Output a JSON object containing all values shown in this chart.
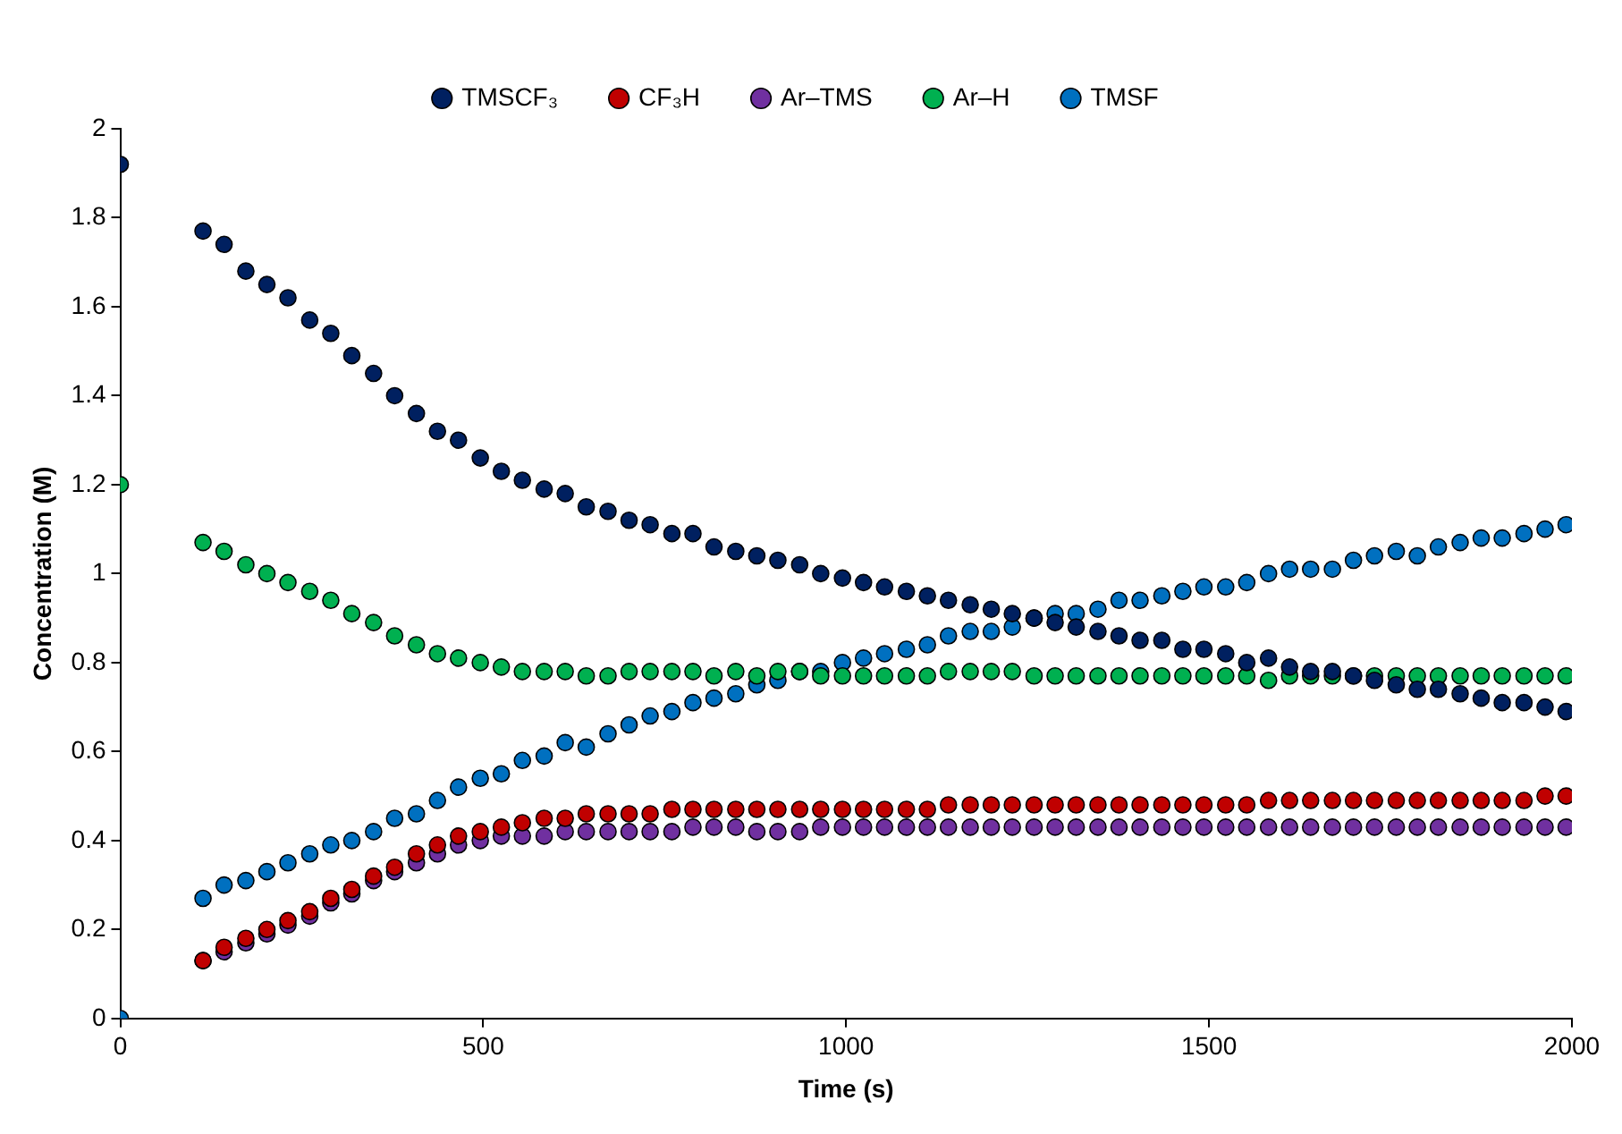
{
  "chart_data": {
    "type": "scatter",
    "xlabel": "Time (s)",
    "ylabel": "Concentration (M)",
    "x": [
      0,
      114,
      143,
      173,
      202,
      231,
      261,
      290,
      319,
      349,
      378,
      408,
      437,
      466,
      496,
      525,
      554,
      584,
      613,
      642,
      672,
      701,
      730,
      760,
      789,
      818,
      848,
      877,
      906,
      936,
      965,
      995,
      1024,
      1053,
      1083,
      1112,
      1141,
      1171,
      1200,
      1229,
      1259,
      1288,
      1317,
      1347,
      1376,
      1405,
      1435,
      1464,
      1493,
      1523,
      1552,
      1582,
      1611,
      1640,
      1670,
      1699,
      1728,
      1758,
      1787,
      1816,
      1846,
      1875,
      1904,
      1934,
      1963,
      1992
    ],
    "series": [
      {
        "name": "TMSCF₃",
        "color": "#002060",
        "values": [
          1.92,
          1.77,
          1.74,
          1.68,
          1.65,
          1.62,
          1.57,
          1.54,
          1.49,
          1.45,
          1.4,
          1.36,
          1.32,
          1.3,
          1.26,
          1.23,
          1.21,
          1.19,
          1.18,
          1.15,
          1.14,
          1.12,
          1.11,
          1.09,
          1.09,
          1.06,
          1.05,
          1.04,
          1.03,
          1.02,
          1.0,
          0.99,
          0.98,
          0.97,
          0.96,
          0.95,
          0.94,
          0.93,
          0.92,
          0.91,
          0.9,
          0.89,
          0.88,
          0.87,
          0.86,
          0.85,
          0.85,
          0.83,
          0.83,
          0.82,
          0.8,
          0.81,
          0.79,
          0.78,
          0.78,
          0.77,
          0.76,
          0.75,
          0.74,
          0.74,
          0.73,
          0.72,
          0.71,
          0.71,
          0.7,
          0.69
        ]
      },
      {
        "name": "CF₃H",
        "color": "#c00000",
        "values": [
          null,
          0.13,
          0.16,
          0.18,
          0.2,
          0.22,
          0.24,
          0.27,
          0.29,
          0.32,
          0.34,
          0.37,
          0.39,
          0.41,
          0.42,
          0.43,
          0.44,
          0.45,
          0.45,
          0.46,
          0.46,
          0.46,
          0.46,
          0.47,
          0.47,
          0.47,
          0.47,
          0.47,
          0.47,
          0.47,
          0.47,
          0.47,
          0.47,
          0.47,
          0.47,
          0.47,
          0.48,
          0.48,
          0.48,
          0.48,
          0.48,
          0.48,
          0.48,
          0.48,
          0.48,
          0.48,
          0.48,
          0.48,
          0.48,
          0.48,
          0.48,
          0.49,
          0.49,
          0.49,
          0.49,
          0.49,
          0.49,
          0.49,
          0.49,
          0.49,
          0.49,
          0.49,
          0.49,
          0.49,
          0.5,
          0.5
        ]
      },
      {
        "name": "Ar–TMS",
        "color": "#7030a0",
        "values": [
          null,
          0.13,
          0.15,
          0.17,
          0.19,
          0.21,
          0.23,
          0.26,
          0.28,
          0.31,
          0.33,
          0.35,
          0.37,
          0.39,
          0.4,
          0.41,
          0.41,
          0.41,
          0.42,
          0.42,
          0.42,
          0.42,
          0.42,
          0.42,
          0.43,
          0.43,
          0.43,
          0.42,
          0.42,
          0.42,
          0.43,
          0.43,
          0.43,
          0.43,
          0.43,
          0.43,
          0.43,
          0.43,
          0.43,
          0.43,
          0.43,
          0.43,
          0.43,
          0.43,
          0.43,
          0.43,
          0.43,
          0.43,
          0.43,
          0.43,
          0.43,
          0.43,
          0.43,
          0.43,
          0.43,
          0.43,
          0.43,
          0.43,
          0.43,
          0.43,
          0.43,
          0.43,
          0.43,
          0.43,
          0.43,
          0.43
        ]
      },
      {
        "name": "Ar–H",
        "color": "#00b050",
        "values": [
          1.2,
          1.07,
          1.05,
          1.02,
          1.0,
          0.98,
          0.96,
          0.94,
          0.91,
          0.89,
          0.86,
          0.84,
          0.82,
          0.81,
          0.8,
          0.79,
          0.78,
          0.78,
          0.78,
          0.77,
          0.77,
          0.78,
          0.78,
          0.78,
          0.78,
          0.77,
          0.78,
          0.77,
          0.78,
          0.78,
          0.77,
          0.77,
          0.77,
          0.77,
          0.77,
          0.77,
          0.78,
          0.78,
          0.78,
          0.78,
          0.77,
          0.77,
          0.77,
          0.77,
          0.77,
          0.77,
          0.77,
          0.77,
          0.77,
          0.77,
          0.77,
          0.76,
          0.77,
          0.77,
          0.77,
          0.77,
          0.77,
          0.77,
          0.77,
          0.77,
          0.77,
          0.77,
          0.77,
          0.77,
          0.77,
          0.77
        ]
      },
      {
        "name": "TMSF",
        "color": "#0070c0",
        "values": [
          0,
          0.27,
          0.3,
          0.31,
          0.33,
          0.35,
          0.37,
          0.39,
          0.4,
          0.42,
          0.45,
          0.46,
          0.49,
          0.52,
          0.54,
          0.55,
          0.58,
          0.59,
          0.62,
          0.61,
          0.64,
          0.66,
          0.68,
          0.69,
          0.71,
          0.72,
          0.73,
          0.75,
          0.76,
          0.78,
          0.78,
          0.8,
          0.81,
          0.82,
          0.83,
          0.84,
          0.86,
          0.87,
          0.87,
          0.88,
          0.9,
          0.91,
          0.91,
          0.92,
          0.94,
          0.94,
          0.95,
          0.96,
          0.97,
          0.97,
          0.98,
          1.0,
          1.01,
          1.01,
          1.01,
          1.03,
          1.04,
          1.05,
          1.04,
          1.06,
          1.07,
          1.08,
          1.08,
          1.09,
          1.1,
          1.11
        ]
      }
    ],
    "xlim": [
      0,
      2000
    ],
    "xticks": [
      0,
      500,
      1000,
      1500,
      2000
    ],
    "ylim": [
      0,
      2
    ],
    "yticks": [
      0,
      0.2,
      0.4,
      0.6,
      0.8,
      1,
      1.2,
      1.4,
      1.6,
      1.8,
      2
    ],
    "grid": false,
    "legend": "top",
    "marker": "circle"
  }
}
